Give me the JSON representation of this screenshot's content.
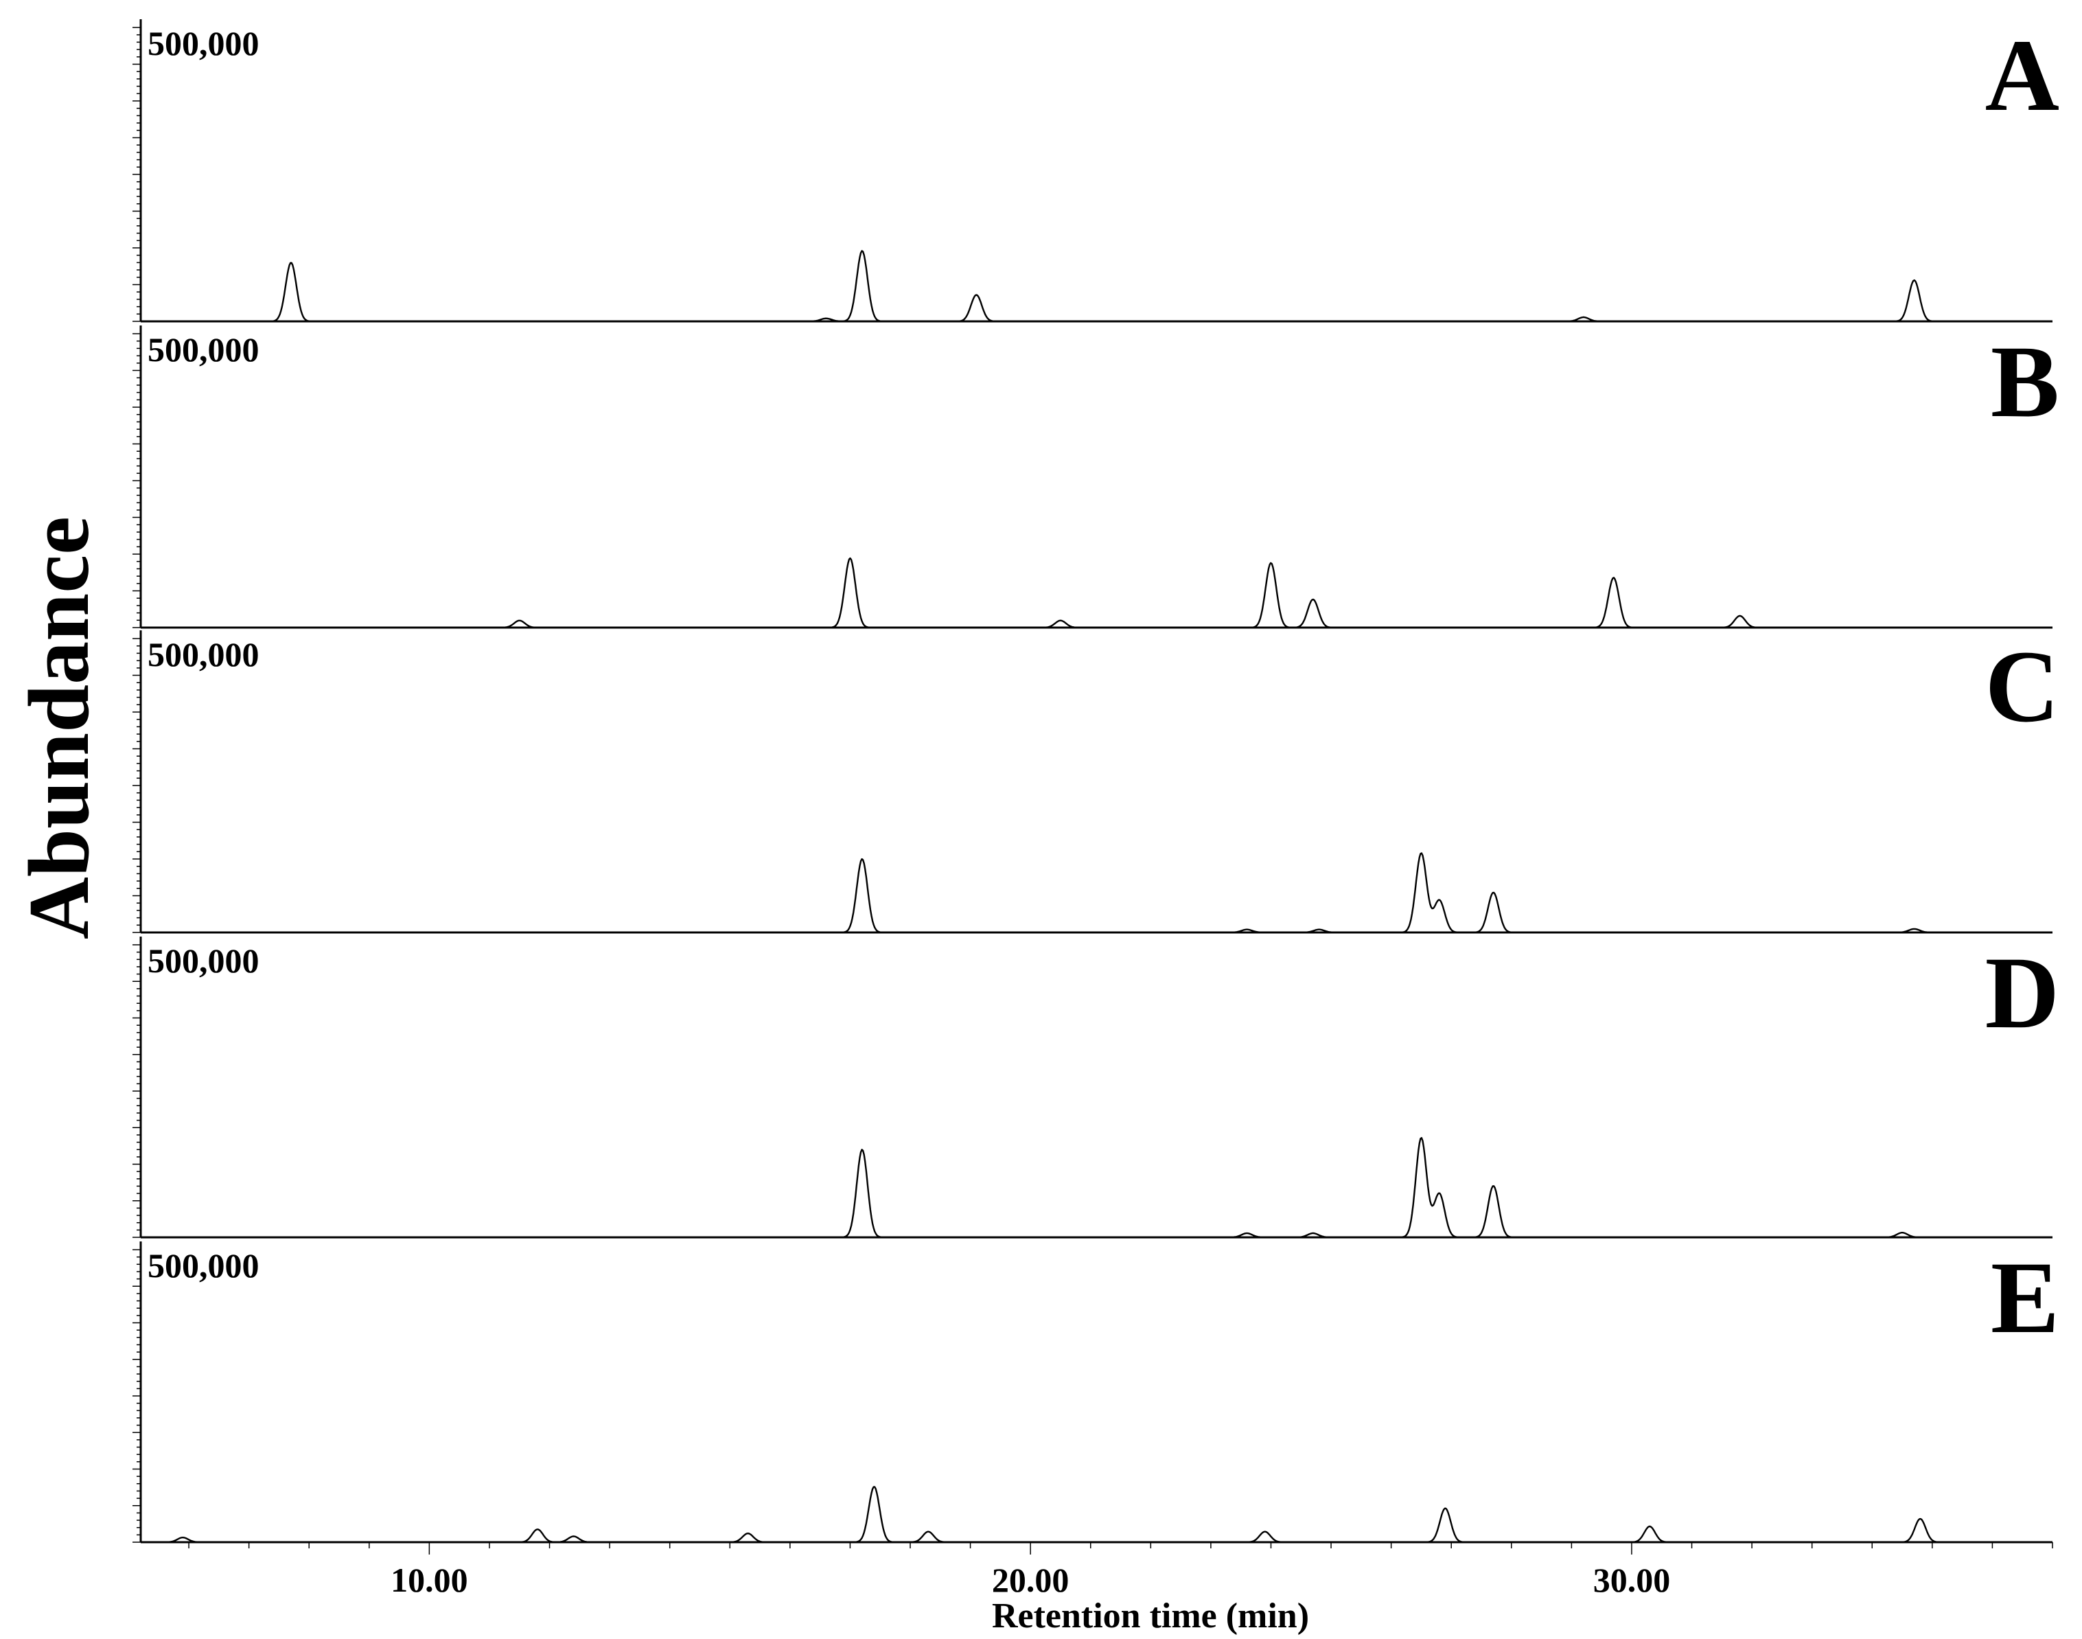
{
  "chart_data": {
    "type": "line",
    "ylabel": "Abundance",
    "xlabel": "Retention time (min)",
    "xlim": [
      5.2,
      37.0
    ],
    "x_ticks": [
      {
        "value": 10,
        "label": "10.00"
      },
      {
        "value": 20,
        "label": "20.00"
      },
      {
        "value": 30,
        "label": "30.00"
      }
    ],
    "ylim": [
      0,
      500000
    ],
    "panels": [
      {
        "letter": "A",
        "max_label": "500,000",
        "peaks": [
          {
            "x": 7.7,
            "y": 100000
          },
          {
            "x": 16.6,
            "y": 5000
          },
          {
            "x": 17.2,
            "y": 120000
          },
          {
            "x": 19.1,
            "y": 45000
          },
          {
            "x": 29.2,
            "y": 7000
          },
          {
            "x": 34.7,
            "y": 70000
          }
        ]
      },
      {
        "letter": "B",
        "max_label": "500,000",
        "peaks": [
          {
            "x": 11.5,
            "y": 12000
          },
          {
            "x": 17.0,
            "y": 118000
          },
          {
            "x": 20.5,
            "y": 12000
          },
          {
            "x": 24.0,
            "y": 110000
          },
          {
            "x": 24.7,
            "y": 48000
          },
          {
            "x": 29.7,
            "y": 85000
          },
          {
            "x": 31.8,
            "y": 20000
          }
        ]
      },
      {
        "letter": "C",
        "max_label": "500,000",
        "peaks": [
          {
            "x": 17.2,
            "y": 125000
          },
          {
            "x": 23.6,
            "y": 5000
          },
          {
            "x": 24.8,
            "y": 5000
          },
          {
            "x": 26.5,
            "y": 135000
          },
          {
            "x": 26.8,
            "y": 55000
          },
          {
            "x": 27.7,
            "y": 68000
          },
          {
            "x": 34.7,
            "y": 6000
          }
        ]
      },
      {
        "letter": "D",
        "max_label": "500,000",
        "peaks": [
          {
            "x": 17.2,
            "y": 150000
          },
          {
            "x": 23.6,
            "y": 7000
          },
          {
            "x": 24.7,
            "y": 7000
          },
          {
            "x": 26.5,
            "y": 170000
          },
          {
            "x": 26.8,
            "y": 75000
          },
          {
            "x": 27.7,
            "y": 88000
          },
          {
            "x": 34.5,
            "y": 8000
          }
        ]
      },
      {
        "letter": "E",
        "max_label": "500,000",
        "peaks": [
          {
            "x": 5.9,
            "y": 8000
          },
          {
            "x": 11.8,
            "y": 22000
          },
          {
            "x": 12.4,
            "y": 10000
          },
          {
            "x": 15.3,
            "y": 15000
          },
          {
            "x": 17.4,
            "y": 95000
          },
          {
            "x": 18.3,
            "y": 18000
          },
          {
            "x": 23.9,
            "y": 18000
          },
          {
            "x": 26.9,
            "y": 58000
          },
          {
            "x": 30.3,
            "y": 27000
          },
          {
            "x": 34.8,
            "y": 40000
          }
        ]
      }
    ]
  }
}
